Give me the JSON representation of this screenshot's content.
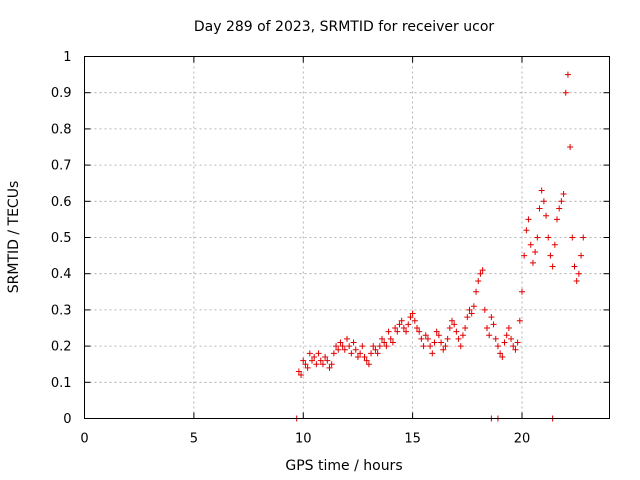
{
  "chart_data": {
    "type": "scatter",
    "title": "Day 289 of 2023, SRMTID for receiver ucor",
    "xlabel": "GPS time / hours",
    "ylabel": "SRMTID / TECUs",
    "xlim": [
      0,
      24
    ],
    "ylim": [
      0,
      1
    ],
    "x_ticks": [
      0,
      5,
      10,
      15,
      20
    ],
    "x_tick_labels": [
      "0",
      "5",
      "10",
      "15",
      "20"
    ],
    "y_ticks": [
      0,
      0.1,
      0.2,
      0.3,
      0.4,
      0.5,
      0.6,
      0.7,
      0.8,
      0.9,
      1
    ],
    "y_tick_labels": [
      "0",
      "0.1",
      "0.2",
      "0.3",
      "0.4",
      "0.5",
      "0.6",
      "0.7",
      "0.8",
      "0.9",
      "1"
    ],
    "grid": true,
    "marker": "+",
    "color": "#e00000",
    "series": [
      {
        "name": "SRMTID",
        "x": [
          9.8,
          9.9,
          10.0,
          10.1,
          10.2,
          10.3,
          10.4,
          10.5,
          10.6,
          10.7,
          10.8,
          10.9,
          11.0,
          11.1,
          11.2,
          11.3,
          11.4,
          11.5,
          11.6,
          11.7,
          11.8,
          11.9,
          12.0,
          12.1,
          12.2,
          12.3,
          12.4,
          12.5,
          12.6,
          12.7,
          12.8,
          12.9,
          13.0,
          13.1,
          13.2,
          13.3,
          13.4,
          13.5,
          13.6,
          13.7,
          13.8,
          13.9,
          14.0,
          14.1,
          14.2,
          14.3,
          14.4,
          14.5,
          14.6,
          14.7,
          14.8,
          14.9,
          15.0,
          15.1,
          15.2,
          15.3,
          15.4,
          15.5,
          15.6,
          15.7,
          15.8,
          15.9,
          16.0,
          16.1,
          16.2,
          16.3,
          16.4,
          16.5,
          16.6,
          16.7,
          16.8,
          16.9,
          17.0,
          17.1,
          17.2,
          17.3,
          17.4,
          17.5,
          17.6,
          17.7,
          17.8,
          17.9,
          18.0,
          18.1,
          18.2,
          18.3,
          18.4,
          18.5,
          18.6,
          18.7,
          18.8,
          18.9,
          19.0,
          19.1,
          19.2,
          19.3,
          19.4,
          19.5,
          19.6,
          19.7,
          19.8,
          19.9,
          20.0,
          20.1,
          20.2,
          20.3,
          20.4,
          20.5,
          20.6,
          20.7,
          20.8,
          20.9,
          21.0,
          21.1,
          21.2,
          21.3,
          21.4,
          21.5,
          21.6,
          21.7,
          21.8,
          21.9,
          22.0,
          22.1,
          22.2,
          22.3,
          22.4,
          22.5,
          22.6,
          22.7,
          22.8,
          9.7,
          18.6,
          18.9,
          21.4
        ],
        "y": [
          0.13,
          0.12,
          0.16,
          0.15,
          0.14,
          0.18,
          0.16,
          0.17,
          0.15,
          0.18,
          0.16,
          0.15,
          0.17,
          0.16,
          0.14,
          0.15,
          0.18,
          0.2,
          0.19,
          0.21,
          0.2,
          0.19,
          0.22,
          0.2,
          0.18,
          0.21,
          0.19,
          0.17,
          0.18,
          0.2,
          0.17,
          0.16,
          0.15,
          0.18,
          0.2,
          0.19,
          0.18,
          0.2,
          0.22,
          0.21,
          0.2,
          0.24,
          0.22,
          0.21,
          0.25,
          0.24,
          0.26,
          0.27,
          0.25,
          0.24,
          0.26,
          0.28,
          0.29,
          0.27,
          0.25,
          0.24,
          0.22,
          0.2,
          0.23,
          0.22,
          0.2,
          0.18,
          0.21,
          0.24,
          0.23,
          0.21,
          0.19,
          0.2,
          0.22,
          0.25,
          0.27,
          0.26,
          0.24,
          0.22,
          0.2,
          0.23,
          0.25,
          0.28,
          0.3,
          0.29,
          0.31,
          0.35,
          0.38,
          0.4,
          0.41,
          0.3,
          0.25,
          0.23,
          0.28,
          0.26,
          0.22,
          0.2,
          0.18,
          0.17,
          0.21,
          0.23,
          0.25,
          0.22,
          0.2,
          0.19,
          0.21,
          0.27,
          0.35,
          0.45,
          0.52,
          0.55,
          0.48,
          0.43,
          0.46,
          0.5,
          0.58,
          0.63,
          0.6,
          0.56,
          0.5,
          0.45,
          0.42,
          0.48,
          0.55,
          0.58,
          0.6,
          0.62,
          0.9,
          0.95,
          0.75,
          0.5,
          0.42,
          0.38,
          0.4,
          0.45,
          0.5,
          0.0,
          0.0,
          0.0,
          0.0
        ]
      }
    ]
  }
}
